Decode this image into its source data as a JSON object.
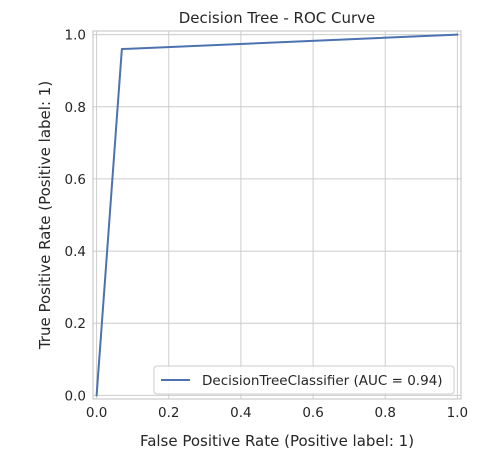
{
  "chart_data": {
    "type": "line",
    "title": "Decision Tree - ROC Curve",
    "xlabel": "False Positive Rate (Positive label: 1)",
    "ylabel": "True Positive Rate (Positive label: 1)",
    "xlim": [
      -0.01,
      1.01
    ],
    "ylim": [
      -0.01,
      1.01
    ],
    "x_ticks": [
      0.0,
      0.2,
      0.4,
      0.6,
      0.8,
      1.0
    ],
    "x_tick_labels": [
      "0.0",
      "0.2",
      "0.4",
      "0.6",
      "0.8",
      "1.0"
    ],
    "y_ticks": [
      0.0,
      0.2,
      0.4,
      0.6,
      0.8,
      1.0
    ],
    "y_tick_labels": [
      "0.0",
      "0.2",
      "0.4",
      "0.6",
      "0.8",
      "1.0"
    ],
    "grid": true,
    "legend_position": "lower right",
    "series": [
      {
        "name": "DecisionTreeClassifier (AUC = 0.94)",
        "color": "#4c72b0",
        "x": [
          0.0,
          0.07,
          1.0
        ],
        "y": [
          0.0,
          0.96,
          1.0
        ]
      }
    ]
  }
}
